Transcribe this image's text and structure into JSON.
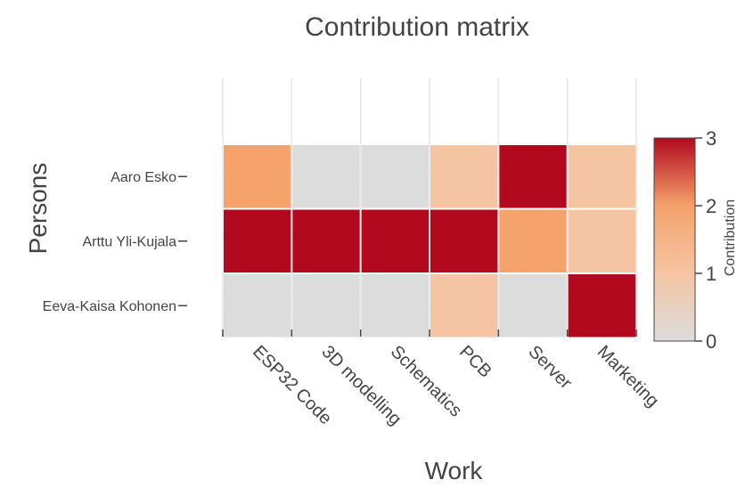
{
  "chart_data": {
    "type": "heatmap",
    "title": "Contribution matrix",
    "xlabel": "Work",
    "ylabel": "Persons",
    "x_categories": [
      "ESP32 Code",
      "3D modelling",
      "Schematics",
      "PCB",
      "Server",
      "Marketing"
    ],
    "y_categories": [
      "Aaro Esko",
      "Arttu Yli-Kujala",
      "Eeva-Kaisa Kohonen"
    ],
    "values": [
      [
        2,
        0,
        0,
        1,
        3,
        1
      ],
      [
        3,
        3,
        3,
        3,
        2,
        1
      ],
      [
        0,
        0,
        0,
        1,
        0,
        3
      ]
    ],
    "colorbar": {
      "title": "Contribution",
      "range": [
        0,
        3
      ],
      "ticks": [
        "0",
        "1",
        "2",
        "3"
      ]
    },
    "colorscale": [
      "#dcdcdc",
      "#f5c5a3",
      "#f5a26b",
      "#b2091e"
    ],
    "grid": true
  }
}
